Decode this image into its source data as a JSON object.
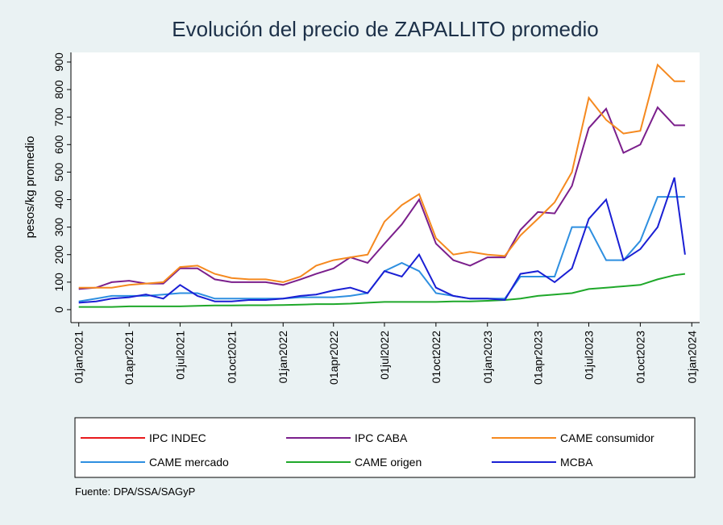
{
  "chart_data": {
    "type": "line",
    "title": "Evolución del precio de ZAPALLITO promedio",
    "y_label": "pesos/kg promedio",
    "source": "Fuente: DPA/SSA/SAGyP",
    "x": [
      "2021-01-01",
      "2021-02-01",
      "2021-03-01",
      "2021-04-01",
      "2021-05-01",
      "2021-06-01",
      "2021-07-01",
      "2021-08-01",
      "2021-09-01",
      "2021-10-01",
      "2021-11-01",
      "2021-12-01",
      "2022-01-01",
      "2022-02-01",
      "2022-03-01",
      "2022-04-01",
      "2022-05-01",
      "2022-06-01",
      "2022-07-01",
      "2022-08-01",
      "2022-09-01",
      "2022-10-01",
      "2022-11-01",
      "2022-12-01",
      "2023-01-01",
      "2023-02-01",
      "2023-03-01",
      "2023-04-01",
      "2023-05-01",
      "2023-06-01",
      "2023-07-01",
      "2023-08-01",
      "2023-09-01",
      "2023-10-01",
      "2023-11-01",
      "2023-12-01",
      "2023-12-20"
    ],
    "series": [
      {
        "name": "IPC INDEC",
        "color": "#e8191c",
        "values": [
          null,
          null,
          null,
          null,
          null,
          null,
          null,
          null,
          null,
          null,
          null,
          null,
          null,
          null,
          null,
          null,
          null,
          null,
          null,
          null,
          null,
          null,
          null,
          null,
          null,
          null,
          null,
          null,
          null,
          null,
          null,
          null,
          null,
          null,
          null,
          null,
          null
        ]
      },
      {
        "name": "IPC CABA",
        "color": "#7b1f8c",
        "values": [
          75,
          80,
          100,
          105,
          95,
          95,
          150,
          150,
          110,
          100,
          100,
          100,
          90,
          110,
          130,
          150,
          190,
          170,
          240,
          310,
          400,
          240,
          180,
          160,
          190,
          190,
          290,
          355,
          350,
          450,
          660,
          730,
          570,
          600,
          735,
          670,
          670
        ]
      },
      {
        "name": "CAME consumidor",
        "color": "#f5891f",
        "values": [
          80,
          80,
          80,
          90,
          95,
          100,
          155,
          160,
          130,
          115,
          110,
          110,
          100,
          120,
          160,
          180,
          190,
          200,
          320,
          380,
          420,
          260,
          200,
          210,
          200,
          195,
          270,
          330,
          390,
          500,
          770,
          690,
          640,
          650,
          890,
          830,
          830
        ]
      },
      {
        "name": "CAME mercado",
        "color": "#2e8fe0",
        "values": [
          30,
          40,
          50,
          50,
          50,
          55,
          60,
          60,
          40,
          40,
          40,
          40,
          40,
          45,
          45,
          45,
          50,
          60,
          140,
          170,
          140,
          60,
          50,
          40,
          40,
          40,
          120,
          120,
          120,
          300,
          300,
          180,
          180,
          250,
          410,
          410,
          410
        ]
      },
      {
        "name": "CAME origen",
        "color": "#1fa82a",
        "values": [
          10,
          10,
          10,
          12,
          12,
          12,
          12,
          14,
          15,
          15,
          16,
          16,
          17,
          18,
          20,
          20,
          22,
          25,
          28,
          28,
          28,
          28,
          30,
          30,
          32,
          35,
          40,
          50,
          55,
          60,
          75,
          80,
          85,
          90,
          110,
          125,
          130
        ]
      },
      {
        "name": "MCBA",
        "color": "#1a1fd4",
        "values": [
          25,
          30,
          40,
          45,
          55,
          40,
          90,
          50,
          30,
          30,
          35,
          35,
          40,
          50,
          55,
          70,
          80,
          60,
          140,
          120,
          200,
          80,
          50,
          40,
          40,
          35,
          130,
          140,
          100,
          150,
          330,
          400,
          180,
          220,
          300,
          480,
          200
        ]
      }
    ],
    "xlim": [
      "2020-12-18",
      "2024-01-15"
    ],
    "xticks": [
      {
        "value": "2021-01-01",
        "label": "01jan2021"
      },
      {
        "value": "2021-04-01",
        "label": "01apr2021"
      },
      {
        "value": "2021-07-01",
        "label": "01jul2021"
      },
      {
        "value": "2021-10-01",
        "label": "01oct2021"
      },
      {
        "value": "2022-01-01",
        "label": "01jan2022"
      },
      {
        "value": "2022-04-01",
        "label": "01apr2022"
      },
      {
        "value": "2022-07-01",
        "label": "01jul2022"
      },
      {
        "value": "2022-10-01",
        "label": "01oct2022"
      },
      {
        "value": "2023-01-01",
        "label": "01jan2023"
      },
      {
        "value": "2023-04-01",
        "label": "01apr2023"
      },
      {
        "value": "2023-07-01",
        "label": "01jul2023"
      },
      {
        "value": "2023-10-01",
        "label": "01oct2023"
      },
      {
        "value": "2024-01-01",
        "label": "01jan2024"
      }
    ],
    "ylim": [
      -47,
      935
    ],
    "yticks": [
      0,
      100,
      200,
      300,
      400,
      500,
      600,
      700,
      800,
      900
    ],
    "grid": false
  }
}
